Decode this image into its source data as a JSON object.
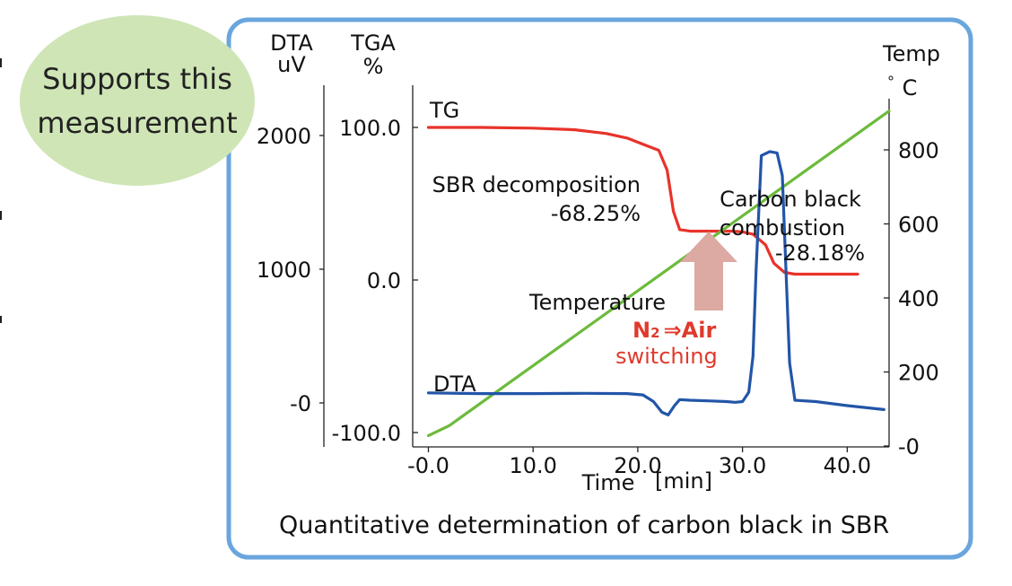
{
  "badge": {
    "line1": "Supports this",
    "line2": "measurement"
  },
  "caption": "Quantitative determination of carbon black in SBR",
  "chart_data": {
    "type": "line",
    "title": "",
    "xlabel": "Time",
    "xunit": "[min]",
    "xlim": [
      -1.5,
      44
    ],
    "xticks": [
      {
        "value": 0,
        "label": "-0.0"
      },
      {
        "value": 10,
        "label": "10.0"
      },
      {
        "value": 20,
        "label": "20.0"
      },
      {
        "value": 30,
        "label": "30.0"
      },
      {
        "value": 40,
        "label": "40.0"
      }
    ],
    "axes": {
      "dta": {
        "title": "DTA",
        "unit": "uV",
        "ticks": [
          {
            "value": 2000,
            "label": "2000"
          },
          {
            "value": 1000,
            "label": "1000"
          },
          {
            "value": 0,
            "label": "-0"
          }
        ]
      },
      "tga": {
        "title": "TGA",
        "unit": "%",
        "ticks": [
          {
            "value": 100,
            "label": "100.0"
          },
          {
            "value": 0,
            "label": "0.0"
          },
          {
            "value": -100,
            "label": "-100.0"
          }
        ]
      },
      "temp": {
        "title": "Temp",
        "unit": "C",
        "ticks": [
          {
            "value": 800,
            "label": "800"
          },
          {
            "value": 600,
            "label": "600"
          },
          {
            "value": 400,
            "label": "400"
          },
          {
            "value": 200,
            "label": "200"
          },
          {
            "value": 0,
            "label": "-0"
          }
        ]
      }
    },
    "series": [
      {
        "name": "TG",
        "axis": "tga",
        "color": "#e8332a",
        "x": [
          0,
          5,
          10,
          14,
          17,
          19,
          20.5,
          22,
          22.8,
          23.4,
          24,
          25,
          27,
          29,
          30,
          31,
          32.2,
          33,
          34,
          35,
          38,
          41
        ],
        "y": [
          100,
          100,
          99.5,
          98.5,
          96,
          93,
          89,
          85,
          72,
          45,
          33,
          32,
          32,
          32,
          31.5,
          30,
          23,
          11,
          5,
          3.8,
          3.8,
          3.8
        ]
      },
      {
        "name": "Temperature",
        "axis": "temp",
        "color": "#6cbb3c",
        "x": [
          0,
          2,
          44
        ],
        "y": [
          28,
          55,
          905
        ]
      },
      {
        "name": "DTA",
        "axis": "dta",
        "color": "#2255a8",
        "x": [
          0,
          5,
          10,
          15,
          19,
          20.5,
          21.5,
          22.3,
          22.9,
          23.5,
          24,
          25,
          27,
          28.5,
          29.3,
          30,
          30.6,
          31,
          31.3,
          31.8,
          32.6,
          33.3,
          33.8,
          34.2,
          34.5,
          35,
          37,
          40,
          43.5
        ],
        "y": [
          75,
          70,
          70,
          72,
          70,
          60,
          10,
          -70,
          -90,
          -20,
          25,
          20,
          15,
          10,
          5,
          10,
          80,
          350,
          1000,
          1850,
          1880,
          1870,
          1700,
          900,
          300,
          20,
          10,
          -20,
          -50
        ]
      }
    ],
    "annotations": {
      "tg_label": "TG",
      "dta_label": "DTA",
      "temperature_label": "Temperature",
      "sbr_line1": "SBR decomposition",
      "sbr_line2": "-68.25%",
      "cb_line1": "Carbon black",
      "cb_line2": "combustion",
      "cb_line3": "-28.18%",
      "switch_n": "N",
      "switch_sub": "2",
      "switch_arrow": "⇒",
      "switch_air": "Air",
      "switch_line2": "switching"
    },
    "arrow_color": "#dca9a3",
    "grid": false,
    "legend": "none"
  }
}
